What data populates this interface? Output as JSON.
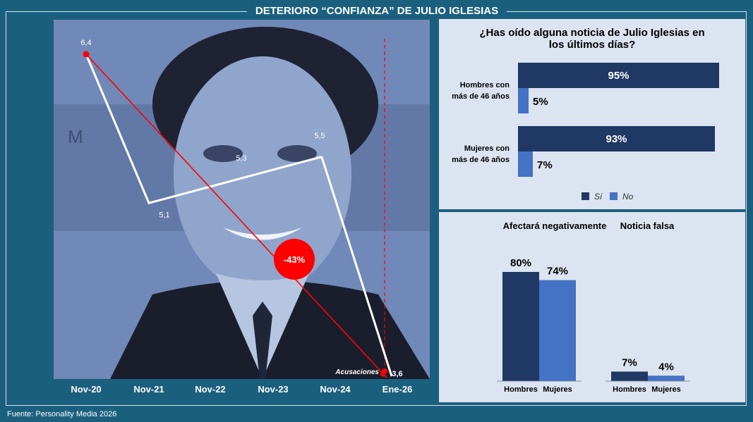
{
  "header": {
    "title": "DETERIORO “CONFIANZA” DE JULIO IGLESIAS"
  },
  "source": "Fuente: Personality Media 2026",
  "colors": {
    "background": "#1b5f7e",
    "panel": "#dce4f1",
    "navy": "#1f3864",
    "blue": "#4472c4",
    "red": "#ff0000"
  },
  "chart_data": [
    {
      "type": "line",
      "categories": [
        "Nov-20",
        "Nov-21",
        "Nov-22",
        "Nov-23",
        "Nov-24",
        "Ene-26"
      ],
      "series": [
        {
          "values": [
            6.4,
            5.1,
            5.3,
            5.5,
            5.5,
            3.6
          ]
        }
      ],
      "point_labels": [
        "6,4",
        "5,1",
        "5,3",
        "5,5",
        "",
        "3,6"
      ],
      "trend_badge": "-43%",
      "annotation": "Acusaciones"
    },
    {
      "type": "bar",
      "title": "¿Has oído alguna noticia de Julio Iglesias en los últimos días?",
      "categories": [
        "Hombres con más de 46 años",
        "Mujeres con más de 46 años"
      ],
      "series": [
        {
          "name": "Sí",
          "values": [
            95,
            93
          ]
        },
        {
          "name": "No",
          "values": [
            5,
            7
          ]
        }
      ],
      "value_labels": [
        [
          "95%",
          "93%"
        ],
        [
          "5%",
          "7%"
        ]
      ],
      "legend": "bottom"
    },
    {
      "type": "bar",
      "groups": [
        {
          "title": "Afectará negativamente",
          "categories": [
            "Hombres",
            "Mujeres"
          ],
          "values": [
            80,
            74
          ],
          "labels": [
            "80%",
            "74%"
          ]
        },
        {
          "title": "Noticia falsa",
          "categories": [
            "Hombres",
            "Mujeres"
          ],
          "values": [
            7,
            4
          ],
          "labels": [
            "7%",
            "4%"
          ]
        }
      ]
    }
  ]
}
